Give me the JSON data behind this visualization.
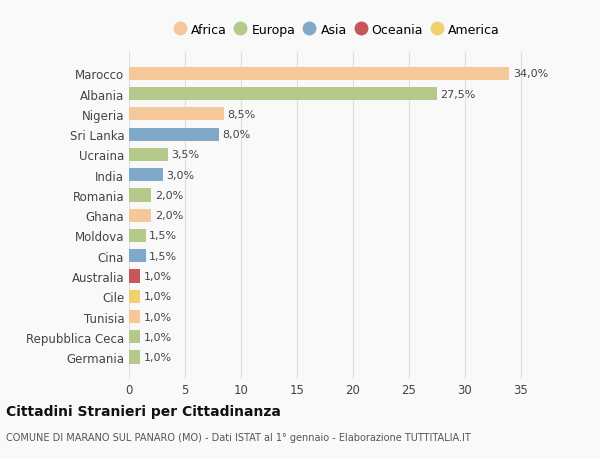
{
  "title": "Cittadini Stranieri per Cittadinanza",
  "subtitle": "COMUNE DI MARANO SUL PANARO (MO) - Dati ISTAT al 1° gennaio - Elaborazione TUTTITALIA.IT",
  "categories": [
    "Marocco",
    "Albania",
    "Nigeria",
    "Sri Lanka",
    "Ucraina",
    "India",
    "Romania",
    "Ghana",
    "Moldova",
    "Cina",
    "Australia",
    "Cile",
    "Tunisia",
    "Repubblica Ceca",
    "Germania"
  ],
  "values": [
    34.0,
    27.5,
    8.5,
    8.0,
    3.5,
    3.0,
    2.0,
    2.0,
    1.5,
    1.5,
    1.0,
    1.0,
    1.0,
    1.0,
    1.0
  ],
  "labels": [
    "34,0%",
    "27,5%",
    "8,5%",
    "8,0%",
    "3,5%",
    "3,0%",
    "2,0%",
    "2,0%",
    "1,5%",
    "1,5%",
    "1,0%",
    "1,0%",
    "1,0%",
    "1,0%",
    "1,0%"
  ],
  "colors": [
    "#f5c89a",
    "#b5c98a",
    "#f5c89a",
    "#7fa8c9",
    "#b5c98a",
    "#7fa8c9",
    "#b5c98a",
    "#f5c89a",
    "#b5c98a",
    "#7fa8c9",
    "#c8555a",
    "#f0d070",
    "#f5c89a",
    "#b5c98a",
    "#b5c98a"
  ],
  "legend": [
    {
      "label": "Africa",
      "color": "#f5c89a"
    },
    {
      "label": "Europa",
      "color": "#b5c98a"
    },
    {
      "label": "Asia",
      "color": "#7fa8c9"
    },
    {
      "label": "Oceania",
      "color": "#c8555a"
    },
    {
      "label": "America",
      "color": "#f0d070"
    }
  ],
  "xlim": [
    0,
    37
  ],
  "xticks": [
    0,
    5,
    10,
    15,
    20,
    25,
    30,
    35
  ],
  "background_color": "#f9f9f9",
  "grid_color": "#dddddd",
  "bar_height": 0.65,
  "figsize": [
    6.0,
    4.6
  ],
  "dpi": 100
}
